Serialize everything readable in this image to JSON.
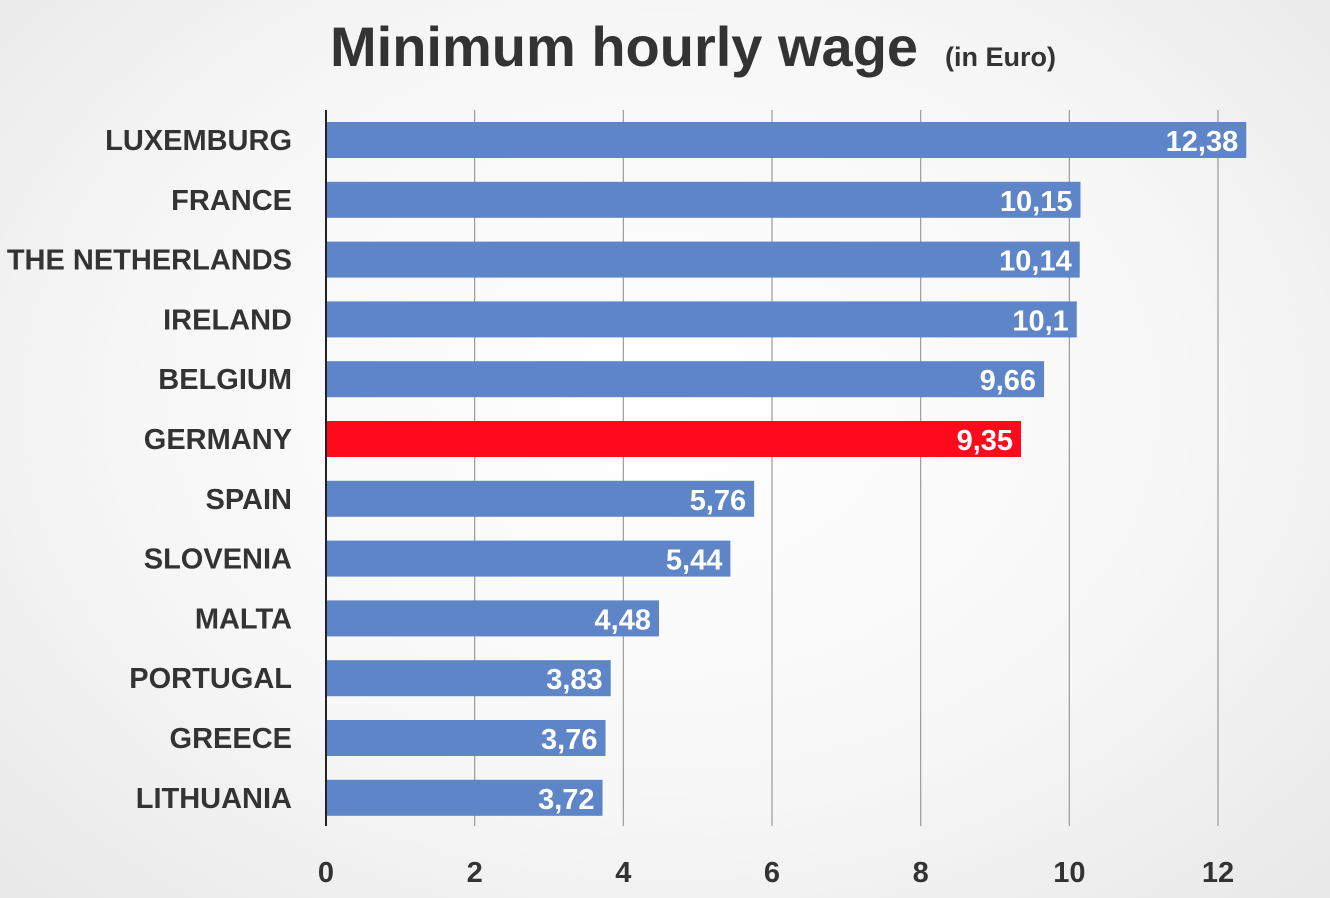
{
  "chart_data": {
    "type": "bar",
    "orientation": "horizontal",
    "title": "Minimum hourly wage",
    "subtitle": "(in Euro)",
    "categories": [
      "LUXEMBURG",
      "FRANCE",
      "THE NETHERLANDS",
      "IRELAND",
      "BELGIUM",
      "GERMANY",
      "SPAIN",
      "SLOVENIA",
      "MALTA",
      "PORTUGAL",
      "GREECE",
      "LITHUANIA"
    ],
    "values": [
      12.38,
      10.15,
      10.14,
      10.1,
      9.66,
      9.35,
      5.76,
      5.44,
      4.48,
      3.83,
      3.76,
      3.72
    ],
    "data_labels": [
      "12,38",
      "10,15",
      "10,14",
      "10,1",
      "9,66",
      "9,35",
      "5,76",
      "5,44",
      "4,48",
      "3,83",
      "3,76",
      "3,72"
    ],
    "xlim": [
      0,
      12
    ],
    "xticks": [
      0,
      2,
      4,
      6,
      8,
      10,
      12
    ],
    "xtick_labels": [
      "0",
      "2",
      "4",
      "6",
      "8",
      "10",
      "12"
    ],
    "grid": "vertical",
    "legend": "none",
    "bar_color": "#5d85c7",
    "highlight_category": "GERMANY",
    "highlight_color": "#ff0a1c"
  }
}
